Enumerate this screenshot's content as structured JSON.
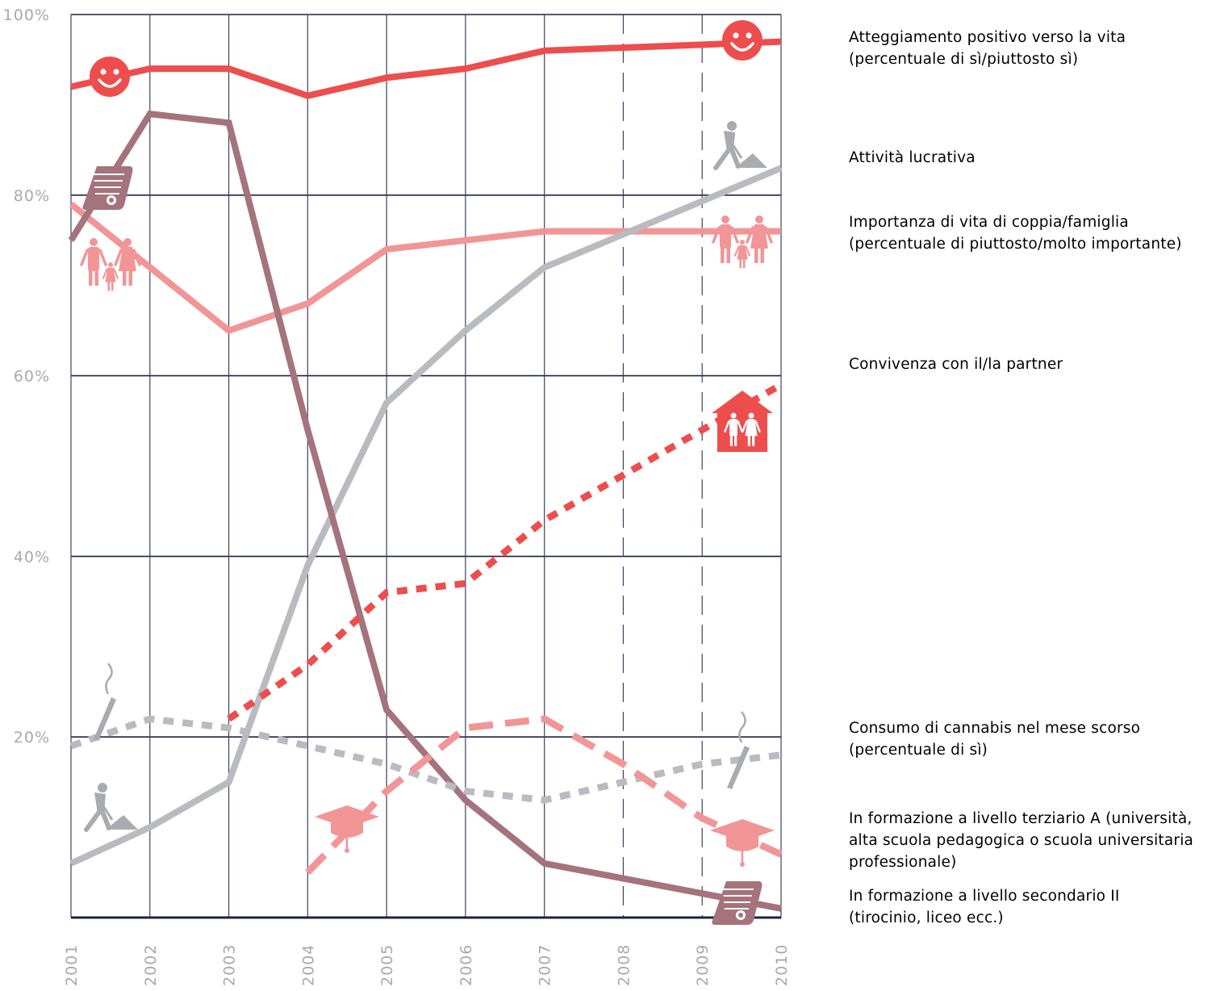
{
  "chart_data": {
    "type": "line",
    "x": [
      2001,
      2002,
      2003,
      2004,
      2005,
      2006,
      2007,
      2008,
      2009,
      2010
    ],
    "x_tick_labels": [
      "2001",
      "2002",
      "2003",
      "2004",
      "2005",
      "2006",
      "2007",
      "2008",
      "2009",
      "2010"
    ],
    "ylim": [
      0,
      100
    ],
    "y_ticks": [
      20,
      40,
      60,
      80,
      100
    ],
    "y_tick_labels": [
      "20%",
      "40%",
      "60%",
      "80%",
      "100%"
    ],
    "grid": true,
    "dashed_verticals_from": 2008,
    "legend_position": "right",
    "series": [
      {
        "key": "positive",
        "name": "Atteggiamento positivo verso la vita\n(percentuale di sì/piuttosto sì)",
        "color": "#ee4d4d",
        "style": "solid",
        "icon": "smiley-icon",
        "points": [
          [
            2001,
            92
          ],
          [
            2002,
            94
          ],
          [
            2003,
            94
          ],
          [
            2004,
            91
          ],
          [
            2005,
            93
          ],
          [
            2006,
            94
          ],
          [
            2007,
            96
          ],
          [
            2010,
            97
          ]
        ]
      },
      {
        "key": "work",
        "name": "Attività lucrativa",
        "color": "#b9bbc1",
        "style": "solid",
        "icon": "worker-icon",
        "points": [
          [
            2001,
            6
          ],
          [
            2002,
            10
          ],
          [
            2003,
            15
          ],
          [
            2004,
            39
          ],
          [
            2005,
            57
          ],
          [
            2006,
            65
          ],
          [
            2007,
            72
          ],
          [
            2010,
            83
          ]
        ]
      },
      {
        "key": "family",
        "name": "Importanza di vita di coppia/famiglia\n(percentuale di piuttosto/molto importante)",
        "color": "#f29596",
        "style": "solid",
        "icon": "family-icon",
        "points": [
          [
            2001,
            79
          ],
          [
            2002,
            72
          ],
          [
            2003,
            65
          ],
          [
            2004,
            68
          ],
          [
            2005,
            74
          ],
          [
            2006,
            75
          ],
          [
            2007,
            76
          ],
          [
            2010,
            76
          ]
        ]
      },
      {
        "key": "cohab",
        "name": "Convivenza con il/la partner",
        "color": "#ee4d4d",
        "style": "dotted",
        "icon": "couple-house-icon",
        "points": [
          [
            2003,
            22
          ],
          [
            2004,
            28
          ],
          [
            2005,
            36
          ],
          [
            2006,
            37
          ],
          [
            2007,
            44
          ],
          [
            2010,
            59
          ]
        ]
      },
      {
        "key": "cannabis",
        "name": "Consumo di cannabis nel mese scorso\n(percentuale di sì)",
        "color": "#b9bbc1",
        "style": "dotted",
        "icon": "joint-icon",
        "points": [
          [
            2001,
            19
          ],
          [
            2002,
            22
          ],
          [
            2003,
            21
          ],
          [
            2004,
            19
          ],
          [
            2005,
            17
          ],
          [
            2006,
            14
          ],
          [
            2007,
            13
          ],
          [
            2008,
            15
          ],
          [
            2009,
            17
          ],
          [
            2010,
            18
          ]
        ]
      },
      {
        "key": "tertiary",
        "name": "In formazione a livello terziario A (università,\nalta scuola pedagogica o scuola universitaria\nprofessionale)",
        "color": "#f29596",
        "style": "dashed",
        "icon": "graduation-cap-icon",
        "points": [
          [
            2004,
            5
          ],
          [
            2005,
            14
          ],
          [
            2006,
            21
          ],
          [
            2007,
            22
          ],
          [
            2008,
            17
          ],
          [
            2009,
            11
          ],
          [
            2010,
            7
          ]
        ]
      },
      {
        "key": "secondary",
        "name": "In formazione a livello secondario II\n(tirocinio, liceo ecc.)",
        "color": "#a5737b",
        "style": "solid",
        "icon": "diploma-icon",
        "points": [
          [
            2001,
            75
          ],
          [
            2002,
            89
          ],
          [
            2003,
            88
          ],
          [
            2004,
            54
          ],
          [
            2005,
            23
          ],
          [
            2006,
            13
          ],
          [
            2007,
            6
          ],
          [
            2010,
            1
          ]
        ]
      }
    ]
  },
  "colors": {
    "axis": "#1c2340",
    "grid": "#3b4263",
    "red": "#ee4d4d",
    "pink": "#f29596",
    "grey": "#b9bbc1",
    "mauve": "#a5737b"
  }
}
